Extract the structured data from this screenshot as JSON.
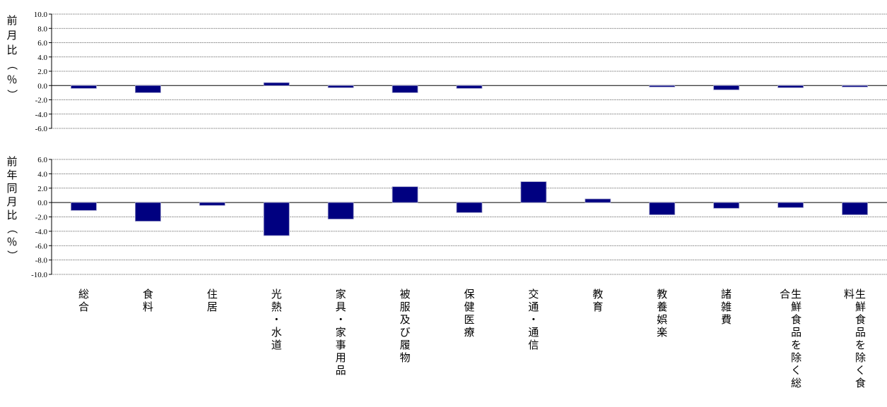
{
  "chart_data": [
    {
      "type": "bar",
      "ylabel": "前月比（％）",
      "ylim": [
        -6.0,
        10.0
      ],
      "yticks": [
        "10.0",
        "8.0",
        "6.0",
        "4.0",
        "2.0",
        "0.0",
        "-2.0",
        "-4.0",
        "-6.0"
      ],
      "grid": true,
      "categories": [
        "総合",
        "食料",
        "住居",
        "光熱・水道",
        "家具・家事用品",
        "被服及び履物",
        "保健医療",
        "交通・通信",
        "教育",
        "教養娯楽",
        "諸雑費",
        "生鮮食品を除く総合",
        "生鮮食品を除く食料"
      ],
      "values": [
        -0.4,
        -1.0,
        0.0,
        0.4,
        -0.3,
        -1.0,
        -0.4,
        0.0,
        0.0,
        -0.2,
        -0.6,
        -0.3,
        -0.2
      ],
      "series_color": "#000080"
    },
    {
      "type": "bar",
      "ylabel": "前年同月比（％）",
      "ylim": [
        -10.0,
        6.0
      ],
      "yticks": [
        "6.0",
        "4.0",
        "2.0",
        "0.0",
        "-2.0",
        "-4.0",
        "-6.0",
        "-8.0",
        "-10.0"
      ],
      "grid": true,
      "categories": [
        "総合",
        "食料",
        "住居",
        "光熱・水道",
        "家具・家事用品",
        "被服及び履物",
        "保健医療",
        "交通・通信",
        "教育",
        "教養娯楽",
        "諸雑費",
        "生鮮食品を除く総合",
        "生鮮食品を除く食料"
      ],
      "values": [
        -1.1,
        -2.6,
        -0.4,
        -4.6,
        -2.3,
        2.2,
        -1.4,
        2.9,
        0.5,
        -1.7,
        -0.8,
        -0.7,
        -1.7
      ],
      "series_color": "#000080"
    }
  ]
}
